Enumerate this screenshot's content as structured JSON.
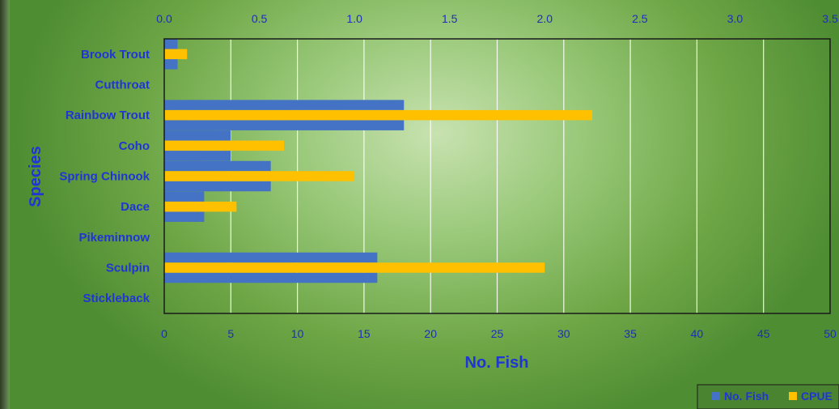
{
  "chart_data": {
    "type": "bar",
    "orientation": "horizontal",
    "categories": [
      "Brook Trout",
      "Cutthroat",
      "Rainbow Trout",
      "Coho",
      "Spring Chinook",
      "Dace",
      "Pikeminnow",
      "Sculpin",
      "Stickleback"
    ],
    "series": [
      {
        "name": "No. Fish",
        "axis": "bottom",
        "values": [
          1,
          0,
          18,
          5,
          8,
          3,
          0,
          16,
          0
        ],
        "color": "#4472c4"
      },
      {
        "name": "CPUE",
        "axis": "top",
        "values": [
          0.12,
          0,
          2.25,
          0.63,
          1.0,
          0.38,
          0,
          2.0,
          0
        ],
        "color": "#ffc000"
      }
    ],
    "xlabel": "No. Fish",
    "ylabel": "Species",
    "xlim_bottom": [
      0,
      50
    ],
    "xticks_bottom": [
      "0",
      "5",
      "10",
      "15",
      "20",
      "25",
      "30",
      "35",
      "40",
      "45",
      "50"
    ],
    "xlim_top": [
      0,
      3.5
    ],
    "xticks_top": [
      "0.0",
      "0.5",
      "1.0",
      "1.5",
      "2.0",
      "2.5",
      "3.0",
      "3.5"
    ],
    "grid": "vertical",
    "legend_position": "bottom-right"
  },
  "colors": {
    "no_fish": "#4472c4",
    "cpue": "#ffc000",
    "label_text": "#1f35d6",
    "grid": "#ffffff"
  }
}
